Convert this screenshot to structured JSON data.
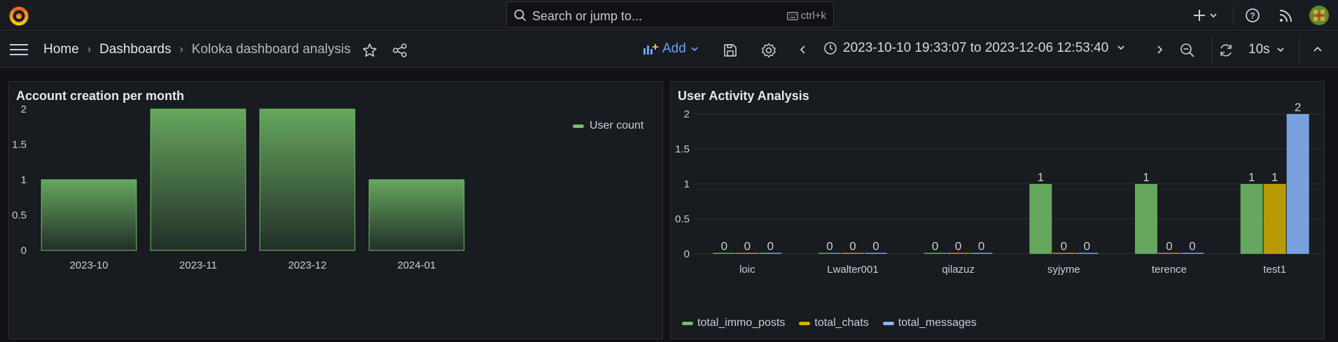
{
  "search": {
    "placeholder": "Search or jump to...",
    "shortcut": "ctrl+k"
  },
  "breadcrumb": {
    "home": "Home",
    "dashboards": "Dashboards",
    "current": "Koloka dashboard analysis"
  },
  "toolbar": {
    "add_label": "Add",
    "time_range": "2023-10-10 19:33:07 to 2023-12-06 12:53:40",
    "refresh_interval": "10s"
  },
  "panels": {
    "accounts": {
      "title": "Account creation per month",
      "legend": "User count"
    },
    "activity": {
      "title": "User Activity Analysis"
    }
  },
  "colors": {
    "green": "#73bf69",
    "yellow": "#d6b000",
    "blue": "#8ab8ff",
    "accent": "#6e9fff"
  },
  "chart_data": [
    {
      "type": "bar",
      "title": "Account creation per month",
      "categories": [
        "2023-10",
        "2023-11",
        "2023-12",
        "2024-01"
      ],
      "series": [
        {
          "name": "User count",
          "values": [
            1,
            2,
            2,
            1
          ]
        }
      ],
      "ylim": [
        0,
        2
      ],
      "yticks": [
        "0",
        "0.5",
        "1",
        "1.5",
        "2"
      ],
      "legend": "top-right",
      "grid": false
    },
    {
      "type": "bar",
      "title": "User Activity Analysis",
      "categories": [
        "loic",
        "Lwalter001",
        "qilazuz",
        "syjyme",
        "terence",
        "test1"
      ],
      "series": [
        {
          "name": "total_immo_posts",
          "values": [
            0,
            0,
            0,
            1,
            1,
            1
          ]
        },
        {
          "name": "total_chats",
          "values": [
            0,
            0,
            0,
            0,
            0,
            1
          ]
        },
        {
          "name": "total_messages",
          "values": [
            0,
            0,
            0,
            0,
            0,
            2
          ]
        }
      ],
      "ylim": [
        0,
        2
      ],
      "yticks": [
        "0",
        "0.5",
        "1",
        "1.5",
        "2"
      ],
      "legend": "bottom",
      "grid": true
    }
  ]
}
